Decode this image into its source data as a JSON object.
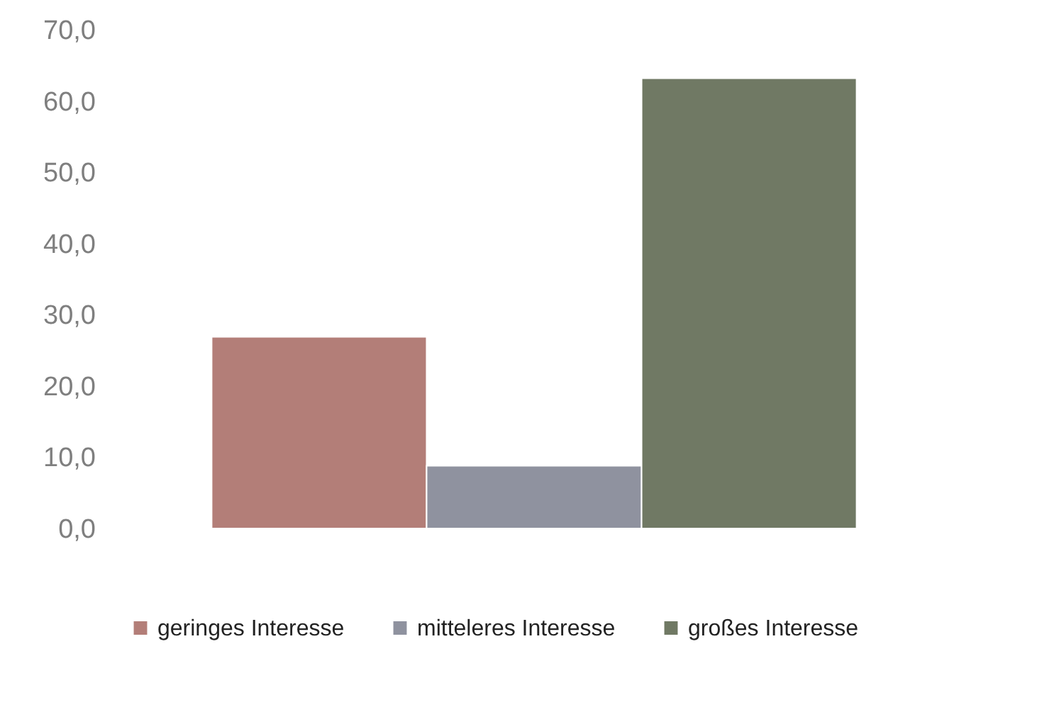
{
  "chart_data": {
    "type": "bar",
    "categories": [
      null
    ],
    "series": [
      {
        "name": "geringes Interesse",
        "color": "#b37e78",
        "values": [
          26.9
        ]
      },
      {
        "name": "mitteleres Interesse",
        "color": "#8f929f",
        "values": [
          8.8
        ]
      },
      {
        "name": "großes Interesse",
        "color": "#707964",
        "values": [
          63.2
        ]
      }
    ],
    "ylim": [
      0,
      70
    ],
    "yticks": [
      {
        "value": 0,
        "label": "0,0"
      },
      {
        "value": 10,
        "label": "10,0"
      },
      {
        "value": 20,
        "label": "20,0"
      },
      {
        "value": 30,
        "label": "30,0"
      },
      {
        "value": 40,
        "label": "40,0"
      },
      {
        "value": 50,
        "label": "50,0"
      },
      {
        "value": 60,
        "label": "60,0"
      },
      {
        "value": 70,
        "label": "70,0"
      }
    ],
    "grid": false,
    "legend": "bottom"
  }
}
